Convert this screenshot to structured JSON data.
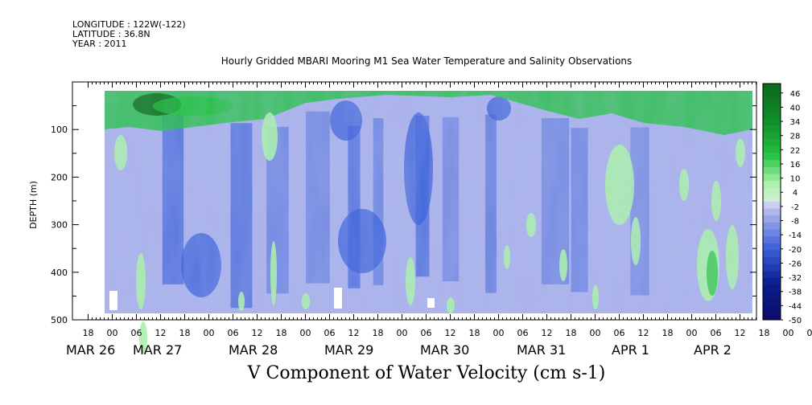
{
  "header": {
    "longitude": "LONGITUDE : 122W(-122)",
    "latitude": "LATITUDE : 36.8N",
    "year": "YEAR : 2011"
  },
  "chart_data": {
    "type": "heatmap",
    "title": "Hourly Gridded MBARI Mooring M1 Sea Water Temperature and Salinity Observations",
    "bottom_label": "V Component of Water Velocity (cm s-1)",
    "ylabel": "DEPTH (m)",
    "ylim": [
      500,
      0
    ],
    "yticks": [
      100,
      200,
      300,
      400,
      500
    ],
    "hour_tick_labels": [
      "18",
      "00",
      "06",
      "12",
      "18",
      "00",
      "06",
      "12",
      "18",
      "00",
      "06",
      "12",
      "18",
      "00",
      "06",
      "12",
      "18",
      "00",
      "06",
      "12",
      "18",
      "00",
      "06",
      "12",
      "18",
      "00",
      "06",
      "12",
      "18",
      "00",
      "06",
      "12"
    ],
    "date_labels": [
      "MAR 26",
      "MAR 27",
      "MAR 28",
      "MAR 29",
      "MAR 30",
      "MAR 31",
      "APR  1",
      "APR  2"
    ],
    "colorbar_levels": [
      "46",
      "40",
      "34",
      "28",
      "22",
      "16",
      "10",
      "4",
      "-2",
      "-8",
      "-14",
      "-20",
      "-26",
      "-32",
      "-38",
      "-44",
      "-50"
    ],
    "colorbar_range": [
      -50,
      50
    ],
    "colors": {
      "strong_negative": "#0a1c8c",
      "negative": "#3a5fd8",
      "weak_negative": "#aab2ea",
      "weak_positive": "#aaf0aa",
      "positive": "#22c040",
      "strong_positive": "#0c6a1c"
    }
  }
}
